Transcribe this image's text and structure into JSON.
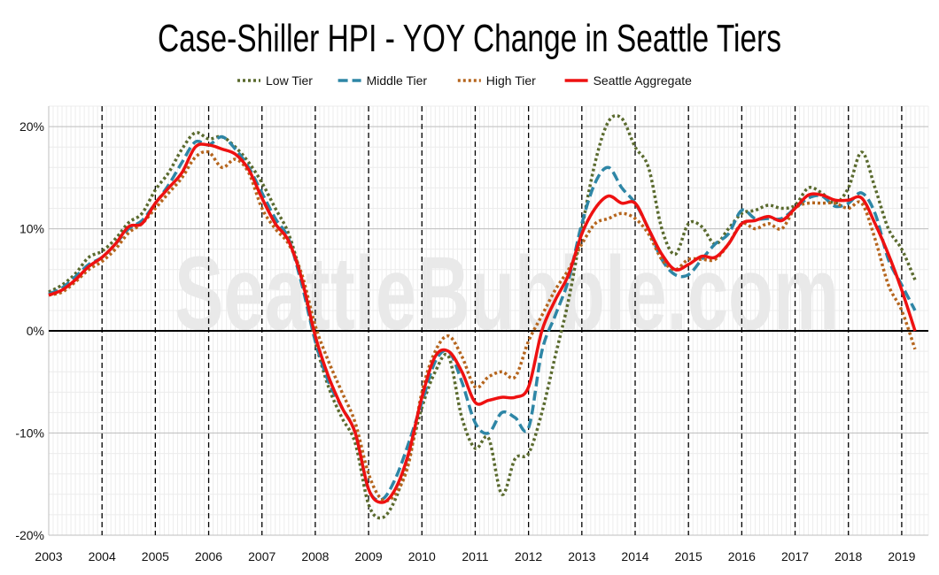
{
  "chart_data": {
    "type": "line",
    "title": "Case-Shiller HPI - YOY Change in Seattle Tiers",
    "watermark": "SeattleBubble.com",
    "xlabel": "",
    "ylabel": "",
    "x_range": [
      2003,
      2019.5
    ],
    "ylim": [
      -20,
      22
    ],
    "y_ticks": [
      20,
      10,
      0,
      -10,
      -20
    ],
    "y_tick_labels": [
      "20%",
      "10%",
      "0%",
      "-10%",
      "-20%"
    ],
    "x_ticks": [
      2003,
      2004,
      2005,
      2006,
      2007,
      2008,
      2009,
      2010,
      2011,
      2012,
      2013,
      2014,
      2015,
      2016,
      2017,
      2018,
      2019
    ],
    "x_tick_labels": [
      "2003",
      "2004",
      "2005",
      "2006",
      "2007",
      "2008",
      "2009",
      "2010",
      "2011",
      "2012",
      "2013",
      "2014",
      "2015",
      "2016",
      "2017",
      "2018",
      "2019"
    ],
    "grid": true,
    "legend_position": "top",
    "series": [
      {
        "name": "Low Tier",
        "color": "#5a6a2e",
        "style": "dotted",
        "points": [
          [
            2003.0,
            3.8
          ],
          [
            2003.25,
            4.5
          ],
          [
            2003.5,
            5.6
          ],
          [
            2003.75,
            7.2
          ],
          [
            2004.0,
            7.8
          ],
          [
            2004.25,
            9.0
          ],
          [
            2004.5,
            10.6
          ],
          [
            2004.75,
            11.5
          ],
          [
            2005.0,
            13.8
          ],
          [
            2005.25,
            15.5
          ],
          [
            2005.5,
            17.8
          ],
          [
            2005.75,
            19.4
          ],
          [
            2006.0,
            18.8
          ],
          [
            2006.25,
            19.0
          ],
          [
            2006.5,
            18.0
          ],
          [
            2006.75,
            16.5
          ],
          [
            2007.0,
            14.5
          ],
          [
            2007.25,
            12.0
          ],
          [
            2007.5,
            9.5
          ],
          [
            2007.75,
            5.0
          ],
          [
            2008.0,
            -1.0
          ],
          [
            2008.25,
            -5.5
          ],
          [
            2008.5,
            -8.5
          ],
          [
            2008.75,
            -11.0
          ],
          [
            2009.0,
            -17.0
          ],
          [
            2009.25,
            -18.3
          ],
          [
            2009.5,
            -16.5
          ],
          [
            2009.75,
            -12.5
          ],
          [
            2010.0,
            -7.5
          ],
          [
            2010.25,
            -4.0
          ],
          [
            2010.5,
            -2.5
          ],
          [
            2010.75,
            -8.5
          ],
          [
            2011.0,
            -11.5
          ],
          [
            2011.25,
            -10.5
          ],
          [
            2011.5,
            -16.0
          ],
          [
            2011.75,
            -12.5
          ],
          [
            2012.0,
            -12.0
          ],
          [
            2012.25,
            -8.0
          ],
          [
            2012.5,
            -2.5
          ],
          [
            2012.75,
            3.0
          ],
          [
            2013.0,
            10.0
          ],
          [
            2013.25,
            16.5
          ],
          [
            2013.5,
            20.5
          ],
          [
            2013.75,
            20.8
          ],
          [
            2014.0,
            18.0
          ],
          [
            2014.25,
            16.0
          ],
          [
            2014.5,
            10.0
          ],
          [
            2014.75,
            7.5
          ],
          [
            2015.0,
            10.5
          ],
          [
            2015.25,
            10.2
          ],
          [
            2015.5,
            8.5
          ],
          [
            2015.75,
            10.0
          ],
          [
            2016.0,
            11.5
          ],
          [
            2016.25,
            11.8
          ],
          [
            2016.5,
            12.3
          ],
          [
            2016.75,
            12.0
          ],
          [
            2017.0,
            12.3
          ],
          [
            2017.25,
            14.0
          ],
          [
            2017.5,
            13.5
          ],
          [
            2017.75,
            12.5
          ],
          [
            2018.0,
            14.0
          ],
          [
            2018.25,
            17.5
          ],
          [
            2018.5,
            14.0
          ],
          [
            2018.75,
            10.0
          ],
          [
            2019.0,
            8.0
          ],
          [
            2019.25,
            5.0
          ]
        ]
      },
      {
        "name": "Middle Tier",
        "color": "#2e86a6",
        "style": "dashed",
        "points": [
          [
            2003.0,
            3.6
          ],
          [
            2003.25,
            4.2
          ],
          [
            2003.5,
            5.3
          ],
          [
            2003.75,
            6.5
          ],
          [
            2004.0,
            7.2
          ],
          [
            2004.25,
            8.5
          ],
          [
            2004.5,
            10.0
          ],
          [
            2004.75,
            10.8
          ],
          [
            2005.0,
            12.5
          ],
          [
            2005.25,
            14.3
          ],
          [
            2005.5,
            16.5
          ],
          [
            2005.75,
            18.5
          ],
          [
            2006.0,
            18.2
          ],
          [
            2006.25,
            19.0
          ],
          [
            2006.5,
            17.8
          ],
          [
            2006.75,
            16.0
          ],
          [
            2007.0,
            13.5
          ],
          [
            2007.25,
            11.0
          ],
          [
            2007.5,
            9.0
          ],
          [
            2007.75,
            4.5
          ],
          [
            2008.0,
            -1.0
          ],
          [
            2008.25,
            -5.0
          ],
          [
            2008.5,
            -7.5
          ],
          [
            2008.75,
            -10.0
          ],
          [
            2009.0,
            -15.5
          ],
          [
            2009.25,
            -16.5
          ],
          [
            2009.5,
            -14.5
          ],
          [
            2009.75,
            -11.0
          ],
          [
            2010.0,
            -7.0
          ],
          [
            2010.25,
            -3.0
          ],
          [
            2010.5,
            -2.0
          ],
          [
            2010.75,
            -5.0
          ],
          [
            2011.0,
            -9.0
          ],
          [
            2011.25,
            -10.0
          ],
          [
            2011.5,
            -8.0
          ],
          [
            2011.75,
            -8.5
          ],
          [
            2012.0,
            -9.5
          ],
          [
            2012.25,
            -2.0
          ],
          [
            2012.5,
            1.5
          ],
          [
            2012.75,
            5.0
          ],
          [
            2013.0,
            10.5
          ],
          [
            2013.25,
            14.5
          ],
          [
            2013.5,
            16.0
          ],
          [
            2013.75,
            14.0
          ],
          [
            2014.0,
            12.5
          ],
          [
            2014.25,
            10.0
          ],
          [
            2014.5,
            7.0
          ],
          [
            2014.75,
            5.5
          ],
          [
            2015.0,
            5.5
          ],
          [
            2015.25,
            7.0
          ],
          [
            2015.5,
            8.5
          ],
          [
            2015.75,
            9.5
          ],
          [
            2016.0,
            11.8
          ],
          [
            2016.25,
            11.0
          ],
          [
            2016.5,
            11.0
          ],
          [
            2016.75,
            11.0
          ],
          [
            2017.0,
            12.0
          ],
          [
            2017.25,
            13.0
          ],
          [
            2017.5,
            13.2
          ],
          [
            2017.75,
            12.2
          ],
          [
            2018.0,
            12.5
          ],
          [
            2018.25,
            13.5
          ],
          [
            2018.5,
            11.5
          ],
          [
            2018.75,
            7.0
          ],
          [
            2019.0,
            4.5
          ],
          [
            2019.25,
            2.0
          ]
        ]
      },
      {
        "name": "High Tier",
        "color": "#b5651d",
        "style": "dotted",
        "points": [
          [
            2003.0,
            3.5
          ],
          [
            2003.25,
            3.8
          ],
          [
            2003.5,
            4.8
          ],
          [
            2003.75,
            6.0
          ],
          [
            2004.0,
            6.8
          ],
          [
            2004.25,
            8.0
          ],
          [
            2004.5,
            9.6
          ],
          [
            2004.75,
            10.5
          ],
          [
            2005.0,
            12.0
          ],
          [
            2005.25,
            13.5
          ],
          [
            2005.5,
            15.0
          ],
          [
            2005.75,
            17.0
          ],
          [
            2006.0,
            17.5
          ],
          [
            2006.25,
            16.0
          ],
          [
            2006.5,
            16.8
          ],
          [
            2006.75,
            15.5
          ],
          [
            2007.0,
            12.0
          ],
          [
            2007.25,
            10.0
          ],
          [
            2007.5,
            8.5
          ],
          [
            2007.75,
            5.5
          ],
          [
            2008.0,
            0.5
          ],
          [
            2008.25,
            -3.0
          ],
          [
            2008.5,
            -6.0
          ],
          [
            2008.75,
            -9.0
          ],
          [
            2009.0,
            -14.0
          ],
          [
            2009.25,
            -16.5
          ],
          [
            2009.5,
            -16.0
          ],
          [
            2009.75,
            -13.0
          ],
          [
            2010.0,
            -6.0
          ],
          [
            2010.25,
            -2.0
          ],
          [
            2010.5,
            -0.5
          ],
          [
            2010.75,
            -2.5
          ],
          [
            2011.0,
            -5.5
          ],
          [
            2011.25,
            -4.5
          ],
          [
            2011.5,
            -4.0
          ],
          [
            2011.75,
            -4.5
          ],
          [
            2012.0,
            -1.0
          ],
          [
            2012.25,
            1.5
          ],
          [
            2012.5,
            4.0
          ],
          [
            2012.75,
            6.0
          ],
          [
            2013.0,
            8.5
          ],
          [
            2013.25,
            10.5
          ],
          [
            2013.5,
            11.0
          ],
          [
            2013.75,
            11.5
          ],
          [
            2014.0,
            11.0
          ],
          [
            2014.25,
            9.5
          ],
          [
            2014.5,
            7.0
          ],
          [
            2014.75,
            6.0
          ],
          [
            2015.0,
            7.0
          ],
          [
            2015.25,
            7.0
          ],
          [
            2015.5,
            7.0
          ],
          [
            2015.75,
            8.5
          ],
          [
            2016.0,
            10.5
          ],
          [
            2016.25,
            10.0
          ],
          [
            2016.5,
            10.5
          ],
          [
            2016.75,
            10.0
          ],
          [
            2017.0,
            12.0
          ],
          [
            2017.25,
            12.5
          ],
          [
            2017.5,
            12.5
          ],
          [
            2017.75,
            12.5
          ],
          [
            2018.0,
            12.0
          ],
          [
            2018.25,
            12.5
          ],
          [
            2018.5,
            9.0
          ],
          [
            2018.75,
            4.5
          ],
          [
            2019.0,
            2.0
          ],
          [
            2019.25,
            -1.8
          ]
        ]
      },
      {
        "name": "Seattle Aggregate",
        "color": "#ee1111",
        "style": "solid",
        "points": [
          [
            2003.0,
            3.5
          ],
          [
            2003.25,
            4.0
          ],
          [
            2003.5,
            5.0
          ],
          [
            2003.75,
            6.3
          ],
          [
            2004.0,
            7.2
          ],
          [
            2004.25,
            8.5
          ],
          [
            2004.5,
            10.2
          ],
          [
            2004.75,
            10.5
          ],
          [
            2005.0,
            12.5
          ],
          [
            2005.25,
            14.0
          ],
          [
            2005.5,
            15.5
          ],
          [
            2005.75,
            18.0
          ],
          [
            2006.0,
            18.2
          ],
          [
            2006.25,
            17.8
          ],
          [
            2006.5,
            17.3
          ],
          [
            2006.75,
            15.8
          ],
          [
            2007.0,
            13.0
          ],
          [
            2007.25,
            10.5
          ],
          [
            2007.5,
            8.8
          ],
          [
            2007.75,
            5.0
          ],
          [
            2008.0,
            -0.5
          ],
          [
            2008.25,
            -4.5
          ],
          [
            2008.5,
            -7.5
          ],
          [
            2008.75,
            -10.0
          ],
          [
            2009.0,
            -15.5
          ],
          [
            2009.25,
            -16.8
          ],
          [
            2009.5,
            -15.5
          ],
          [
            2009.75,
            -12.0
          ],
          [
            2010.0,
            -6.5
          ],
          [
            2010.25,
            -2.5
          ],
          [
            2010.5,
            -2.0
          ],
          [
            2010.75,
            -4.0
          ],
          [
            2011.0,
            -7.0
          ],
          [
            2011.25,
            -6.8
          ],
          [
            2011.5,
            -6.5
          ],
          [
            2011.75,
            -6.5
          ],
          [
            2012.0,
            -5.5
          ],
          [
            2012.25,
            0.0
          ],
          [
            2012.5,
            3.0
          ],
          [
            2012.75,
            5.5
          ],
          [
            2013.0,
            9.5
          ],
          [
            2013.25,
            12.0
          ],
          [
            2013.5,
            13.2
          ],
          [
            2013.75,
            12.5
          ],
          [
            2014.0,
            12.5
          ],
          [
            2014.25,
            10.0
          ],
          [
            2014.5,
            7.5
          ],
          [
            2014.75,
            6.0
          ],
          [
            2015.0,
            6.5
          ],
          [
            2015.25,
            7.3
          ],
          [
            2015.5,
            7.2
          ],
          [
            2015.75,
            8.5
          ],
          [
            2016.0,
            10.5
          ],
          [
            2016.25,
            10.8
          ],
          [
            2016.5,
            11.2
          ],
          [
            2016.75,
            10.8
          ],
          [
            2017.0,
            12.0
          ],
          [
            2017.25,
            13.3
          ],
          [
            2017.5,
            13.3
          ],
          [
            2017.75,
            12.8
          ],
          [
            2018.0,
            12.8
          ],
          [
            2018.25,
            13.0
          ],
          [
            2018.5,
            10.5
          ],
          [
            2018.75,
            7.5
          ],
          [
            2019.0,
            4.0
          ],
          [
            2019.25,
            0.0
          ]
        ]
      }
    ]
  }
}
